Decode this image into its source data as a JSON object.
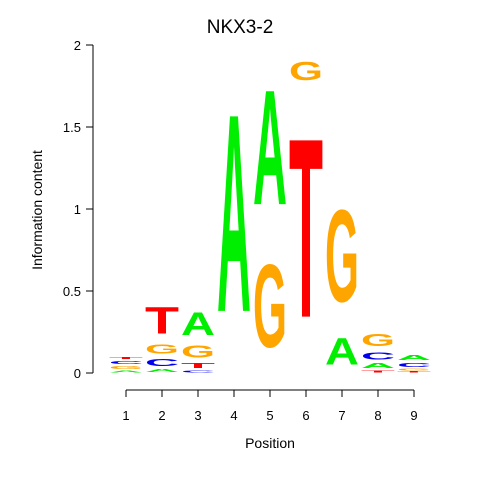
{
  "chart_data": {
    "type": "sequence-logo",
    "title": "NKX3-2",
    "xlabel": "Position",
    "ylabel": "Information content",
    "ylim": [
      0,
      2
    ],
    "yticks": [
      "0",
      "0.5",
      "1",
      "1.5",
      "2"
    ],
    "positions": [
      "1",
      "2",
      "3",
      "4",
      "5",
      "6",
      "7",
      "8",
      "9"
    ],
    "colors": {
      "A": "#00ee00",
      "C": "#0000ee",
      "G": "#ffa500",
      "T": "#ff0000"
    },
    "columns": [
      [
        {
          "base": "A",
          "h": 0.02
        },
        {
          "base": "G",
          "h": 0.03
        },
        {
          "base": "C",
          "h": 0.03
        },
        {
          "base": "T",
          "h": 0.02
        }
      ],
      [
        {
          "base": "A",
          "h": 0.03
        },
        {
          "base": "C",
          "h": 0.07
        },
        {
          "base": "G",
          "h": 0.09
        },
        {
          "base": "T",
          "h": 0.26
        }
      ],
      [
        {
          "base": "C",
          "h": 0.02
        },
        {
          "base": "T",
          "h": 0.05
        },
        {
          "base": "G",
          "h": 0.12
        },
        {
          "base": "A",
          "h": 0.22
        }
      ],
      [
        {
          "base": "A",
          "h": 1.93
        }
      ],
      [
        {
          "base": "G",
          "h": 0.81
        },
        {
          "base": "A",
          "h": 1.12
        }
      ],
      [
        {
          "base": "T",
          "h": 1.75
        },
        {
          "base": "G",
          "h": 0.18
        }
      ],
      [
        {
          "base": "A",
          "h": 0.26
        },
        {
          "base": "G",
          "h": 0.9
        }
      ],
      [
        {
          "base": "T",
          "h": 0.02
        },
        {
          "base": "A",
          "h": 0.05
        },
        {
          "base": "C",
          "h": 0.07
        },
        {
          "base": "G",
          "h": 0.12
        }
      ],
      [
        {
          "base": "T",
          "h": 0.01
        },
        {
          "base": "G",
          "h": 0.02
        },
        {
          "base": "C",
          "h": 0.04
        },
        {
          "base": "A",
          "h": 0.05
        }
      ]
    ]
  }
}
